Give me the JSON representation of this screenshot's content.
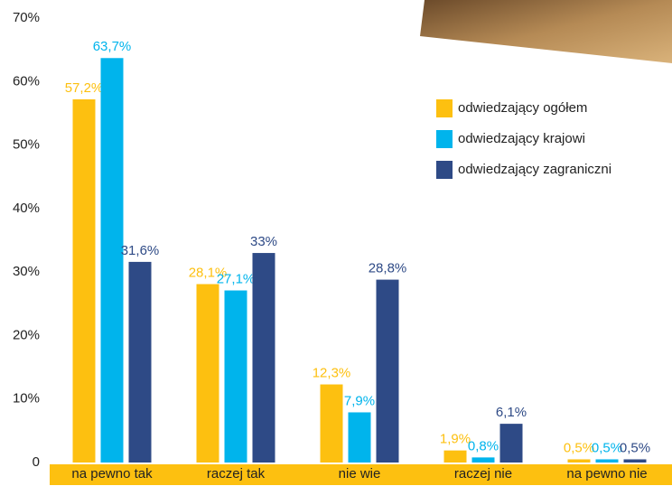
{
  "chart_data": {
    "type": "bar",
    "categories": [
      "na pewno tak",
      "raczej tak",
      "nie wie",
      "raczej nie",
      "na pewno nie"
    ],
    "series": [
      {
        "name": "odwiedzający ogółem",
        "color": "#fdc010",
        "values": [
          57.2,
          28.1,
          12.3,
          1.9,
          0.5
        ],
        "value_labels": [
          "57,2%",
          "28,1%",
          "12,3%",
          "1,9%",
          "0,5%"
        ]
      },
      {
        "name": "odwiedzający krajowi",
        "color": "#00b4ec",
        "values": [
          63.7,
          27.1,
          7.9,
          0.8,
          0.5
        ],
        "value_labels": [
          "63,7%",
          "27,1%",
          "7,9%",
          "0,8%",
          "0,5%"
        ]
      },
      {
        "name": "odwiedzający zagraniczni",
        "color": "#2e4a86",
        "values": [
          31.6,
          33,
          28.8,
          6.1,
          0.5
        ],
        "value_labels": [
          "31,6%",
          "33%",
          "28,8%",
          "6,1%",
          "0,5%"
        ]
      }
    ],
    "ylim": [
      0,
      70
    ],
    "yticks": [
      0,
      {
        "value": 10,
        "label": "10%"
      },
      {
        "value": 20,
        "label": "20%"
      },
      {
        "value": 30,
        "label": "30%"
      },
      {
        "value": 40,
        "label": "40%"
      },
      {
        "value": 50,
        "label": "50%"
      },
      {
        "value": 60,
        "label": "60%"
      },
      {
        "value": 70,
        "label": "70%"
      }
    ]
  }
}
